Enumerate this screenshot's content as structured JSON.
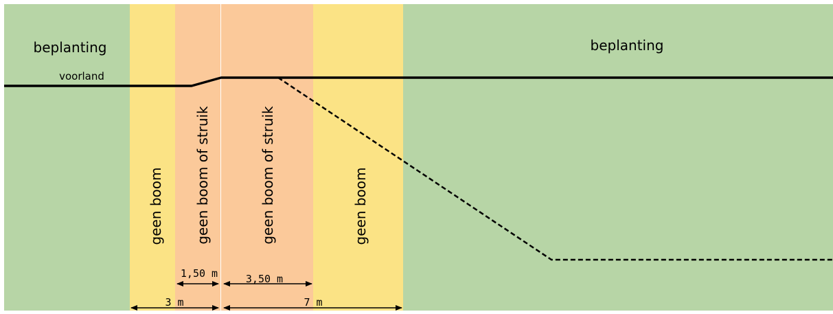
{
  "colors": {
    "plant_green": "#b7d5a6",
    "yellow_zone": "#fbe385",
    "orange_zone": "#fbc99a",
    "orange_zone_edge": "#f8b690",
    "line": "#000000"
  },
  "labels": {
    "beplanting_left": "beplanting",
    "beplanting_right": "beplanting",
    "voorland": "voorland",
    "zone_geen_boom_left": "geen boom",
    "zone_geen_boom_of_struik_1": "geen boom of struik",
    "zone_geen_boom_of_struik_2": "geen boom of struik",
    "zone_geen_boom_right": "geen boom"
  },
  "dimensions": {
    "d_150": "1,50 m",
    "d_350": "3,50 m",
    "d_3": "3 m",
    "d_7": "7 m"
  }
}
